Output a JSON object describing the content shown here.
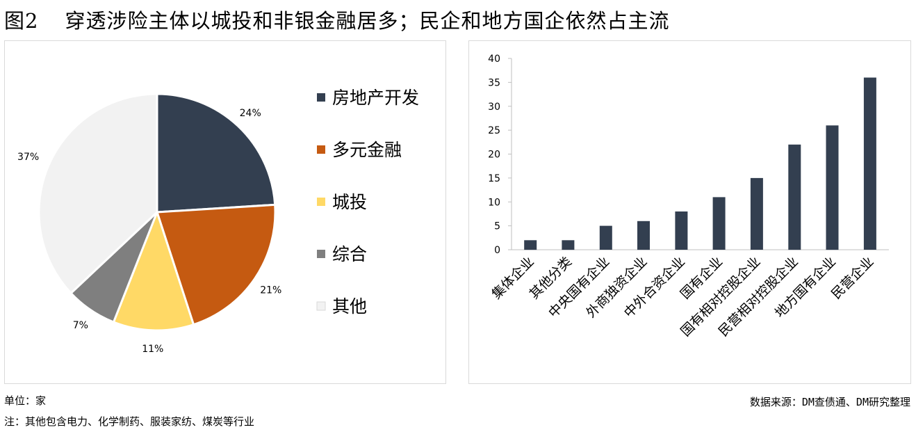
{
  "header": {
    "fig_number": "图2",
    "title": "穿透涉险主体以城投和非银金融居多；民企和地方国企依然占主流"
  },
  "footer": {
    "unit": "单位：家",
    "note": "注：其他包含电力、化学制药、服装家纺、煤炭等行业",
    "source": "数据来源：DM查债通、DM研究整理"
  },
  "colors": {
    "navy": "#333f50",
    "orange": "#c55a11",
    "yellow": "#ffd966",
    "gray": "#7f7f7f",
    "light": "#f2f2f2",
    "bar": "#333f50"
  },
  "chart_data": [
    {
      "type": "pie",
      "categories": [
        "房地产开发",
        "多元金融",
        "城投",
        "综合",
        "其他"
      ],
      "values": [
        24,
        21,
        11,
        7,
        37
      ],
      "labels": [
        "24%",
        "21%",
        "11%",
        "7%",
        "37%"
      ],
      "legend": "right"
    },
    {
      "type": "bar",
      "categories": [
        "集体企业",
        "其他分类",
        "中央国有企业",
        "外商独资企业",
        "中外合资企业",
        "国有企业",
        "国有相对控股企业",
        "民营相对控股企业",
        "地方国有企业",
        "民营企业"
      ],
      "values": [
        2,
        2,
        5,
        6,
        8,
        11,
        15,
        22,
        26,
        36
      ],
      "ylim": [
        0,
        40
      ],
      "yticks": [
        "0",
        "5",
        "10",
        "15",
        "20",
        "25",
        "30",
        "35",
        "40"
      ],
      "grid": false
    }
  ]
}
